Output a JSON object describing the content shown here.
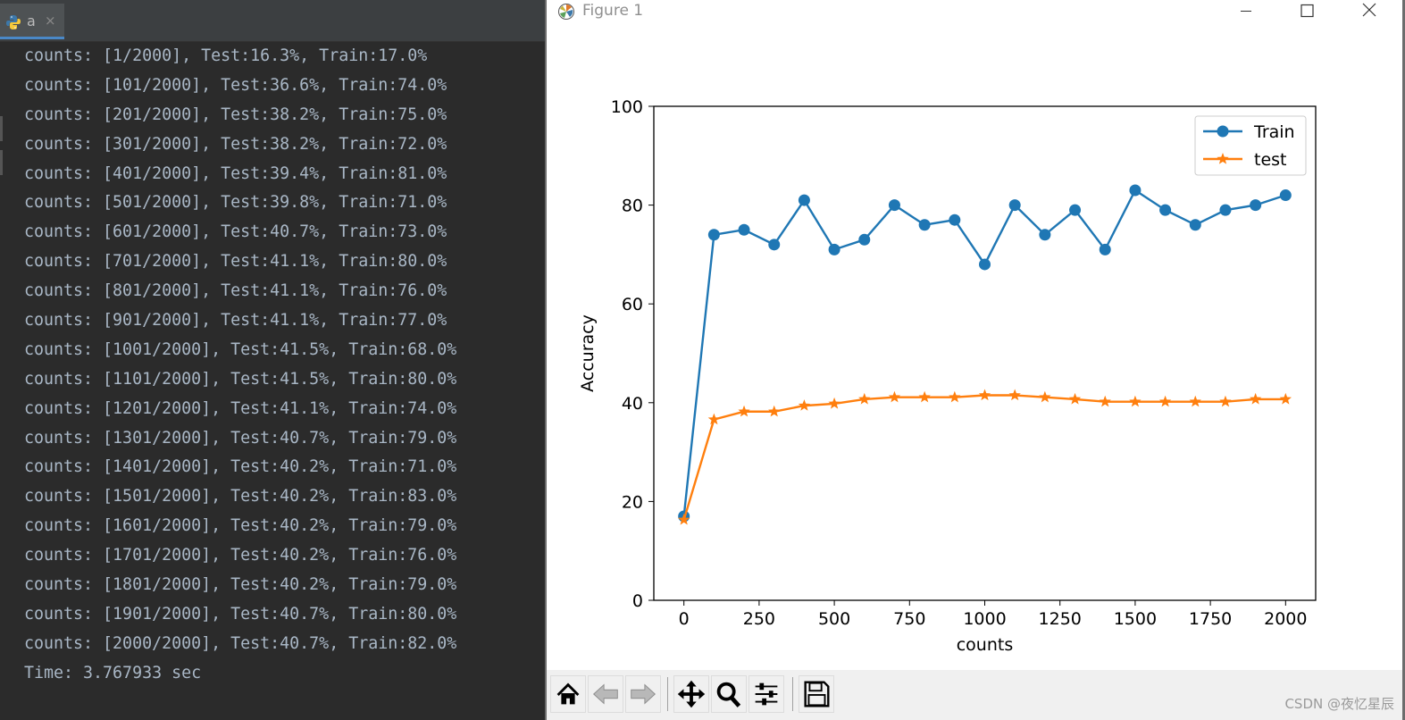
{
  "ide": {
    "tab_label": "a",
    "tab_close": "×",
    "console_lines": [
      "counts: [1/2000], Test:16.3%, Train:17.0%",
      "counts: [101/2000], Test:36.6%, Train:74.0%",
      "counts: [201/2000], Test:38.2%, Train:75.0%",
      "counts: [301/2000], Test:38.2%, Train:72.0%",
      "counts: [401/2000], Test:39.4%, Train:81.0%",
      "counts: [501/2000], Test:39.8%, Train:71.0%",
      "counts: [601/2000], Test:40.7%, Train:73.0%",
      "counts: [701/2000], Test:41.1%, Train:80.0%",
      "counts: [801/2000], Test:41.1%, Train:76.0%",
      "counts: [901/2000], Test:41.1%, Train:77.0%",
      "counts: [1001/2000], Test:41.5%, Train:68.0%",
      "counts: [1101/2000], Test:41.5%, Train:80.0%",
      "counts: [1201/2000], Test:41.1%, Train:74.0%",
      "counts: [1301/2000], Test:40.7%, Train:79.0%",
      "counts: [1401/2000], Test:40.2%, Train:71.0%",
      "counts: [1501/2000], Test:40.2%, Train:83.0%",
      "counts: [1601/2000], Test:40.2%, Train:79.0%",
      "counts: [1701/2000], Test:40.2%, Train:76.0%",
      "counts: [1801/2000], Test:40.2%, Train:79.0%",
      "counts: [1901/2000], Test:40.7%, Train:80.0%",
      "counts: [2000/2000], Test:40.7%, Train:82.0%",
      "Time: 3.767933 sec"
    ]
  },
  "figure_window": {
    "title": "Figure 1",
    "toolbar_icons": [
      "home-icon",
      "back-arrow-icon",
      "forward-arrow-icon",
      "pan-move-icon",
      "zoom-magnifier-icon",
      "configure-subplots-icon",
      "save-floppy-icon"
    ]
  },
  "watermark": "CSDN @夜忆星辰",
  "chart_data": {
    "type": "line",
    "title": "",
    "xlabel": "counts",
    "ylabel": "Accuracy",
    "xlim": [
      -100,
      2100
    ],
    "ylim": [
      0,
      100
    ],
    "xticks": [
      0,
      250,
      500,
      750,
      1000,
      1250,
      1500,
      1750,
      2000
    ],
    "yticks": [
      0,
      20,
      40,
      60,
      80,
      100
    ],
    "legend_position": "top-right",
    "x": [
      0,
      100,
      200,
      300,
      400,
      500,
      600,
      700,
      800,
      900,
      1000,
      1100,
      1200,
      1300,
      1400,
      1500,
      1600,
      1700,
      1800,
      1900,
      2000
    ],
    "series": [
      {
        "name": "Train",
        "marker": "circle",
        "color": "#1f77b4",
        "values": [
          17.0,
          74.0,
          75.0,
          72.0,
          81.0,
          71.0,
          73.0,
          80.0,
          76.0,
          77.0,
          68.0,
          80.0,
          74.0,
          79.0,
          71.0,
          83.0,
          79.0,
          76.0,
          79.0,
          80.0,
          82.0
        ]
      },
      {
        "name": "test",
        "marker": "star",
        "color": "#ff7f0e",
        "values": [
          16.3,
          36.6,
          38.2,
          38.2,
          39.4,
          39.8,
          40.7,
          41.1,
          41.1,
          41.1,
          41.5,
          41.5,
          41.1,
          40.7,
          40.2,
          40.2,
          40.2,
          40.2,
          40.2,
          40.7,
          40.7
        ]
      }
    ]
  }
}
